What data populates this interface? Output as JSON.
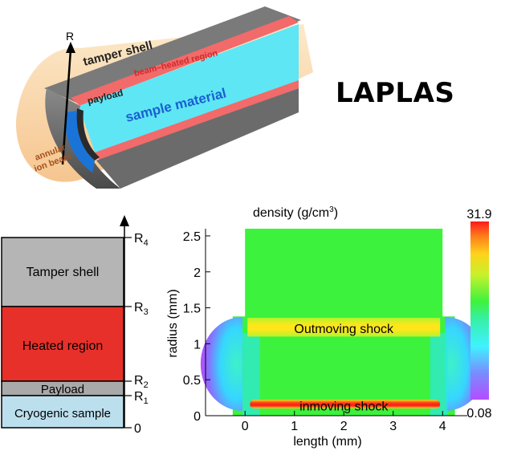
{
  "title": "LAPLAS",
  "cylinder": {
    "axis_label": "R",
    "labels": {
      "tamper_shell": "tamper shell",
      "beam_heated_region": "beam–heated region",
      "payload": "payload",
      "sample_material": "sample material",
      "annular_ion_beam_line1": "annular",
      "annular_ion_beam_line2": "ion beam"
    },
    "colors": {
      "shell": "#6b6b6b",
      "heated": "#f26a6a",
      "sample": "#5ee6f5",
      "inner": "#1a74d8",
      "beam": "#f7c98a"
    }
  },
  "layers": {
    "items": [
      {
        "label": "Tamper shell",
        "color": "#b5b5b5"
      },
      {
        "label": "Heated region",
        "color": "#e8302a"
      },
      {
        "label": "Payload",
        "color": "#a9a9a9"
      },
      {
        "label": "Cryogenic sample",
        "color": "#bcdfee"
      }
    ],
    "axis_ticks": [
      {
        "main": "R",
        "sub": "4"
      },
      {
        "main": "R",
        "sub": "3"
      },
      {
        "main": "R",
        "sub": "2"
      },
      {
        "main": "R",
        "sub": "1"
      },
      {
        "main": "0",
        "sub": ""
      }
    ]
  },
  "chart_data": {
    "type": "heatmap",
    "title_main": "density (g/cm",
    "title_sup": "3",
    "title_end": ")",
    "xlabel": "length (mm)",
    "ylabel": "radius (mm)",
    "xlim": [
      -0.8,
      4.5
    ],
    "ylim": [
      0,
      2.6
    ],
    "xticks": [
      0,
      1,
      2,
      3,
      4
    ],
    "yticks": [
      0,
      0.5,
      1,
      1.5,
      2,
      2.5
    ],
    "xtick_labels": [
      "0",
      "1",
      "2",
      "3",
      "4"
    ],
    "ytick_labels": [
      "0",
      "0.5",
      "1",
      "1.5",
      "2",
      "2.5"
    ],
    "colorbar": {
      "max_label": "31.9",
      "min_label": "0.08",
      "max": 31.9,
      "min": 0.08
    },
    "annotations": {
      "outmoving": "Outmoving shock",
      "inmoving": "inmoving shock"
    }
  }
}
